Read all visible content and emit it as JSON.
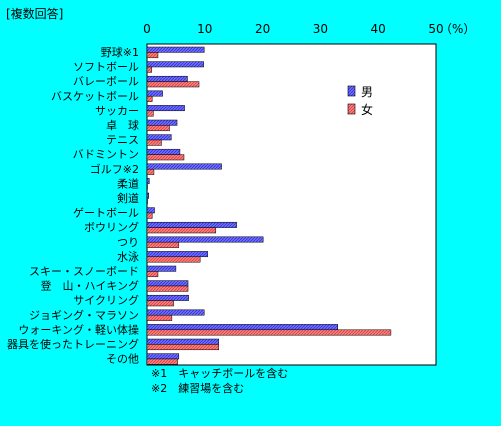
{
  "chart_data": {
    "type": "bar",
    "title": "[複数回答]",
    "unit": "（%）",
    "xlim": [
      0,
      50
    ],
    "ticks": [
      0,
      10,
      20,
      30,
      40,
      50
    ],
    "categories": [
      "野球※1",
      "ソフトボール",
      "バレーボール",
      "バスケットボール",
      "サッカー",
      "卓　球",
      "テニス",
      "バドミントン",
      "ゴルフ※2",
      "柔道",
      "剣道",
      "ゲートボール",
      "ボウリング",
      "つり",
      "水泳",
      "スキー・スノーボード",
      "登　山・ハイキング",
      "サイクリング",
      "ジョギング・マラソン",
      "ウォーキング・軽い体操",
      "器具を使ったトレーニング",
      "その他"
    ],
    "series": [
      {
        "name": "男",
        "color": "#6f6fff",
        "values": [
          9.9,
          9.8,
          7.0,
          2.7,
          6.5,
          5.2,
          4.2,
          5.7,
          12.9,
          0.4,
          0.3,
          1.3,
          15.5,
          20.1,
          10.5,
          5.0,
          7.1,
          7.2,
          9.9,
          33.0,
          12.4,
          5.5
        ]
      },
      {
        "name": "女",
        "color": "#ff7f7f",
        "values": [
          1.9,
          0.8,
          9.0,
          0.9,
          1.1,
          3.9,
          2.5,
          6.4,
          1.2,
          0.1,
          0.1,
          0.9,
          11.9,
          5.5,
          9.2,
          1.9,
          7.1,
          4.6,
          4.3,
          42.2,
          12.4,
          5.3
        ]
      }
    ],
    "notes": [
      "※1　キャッチボールを含む",
      "※2　練習場を含む"
    ]
  }
}
